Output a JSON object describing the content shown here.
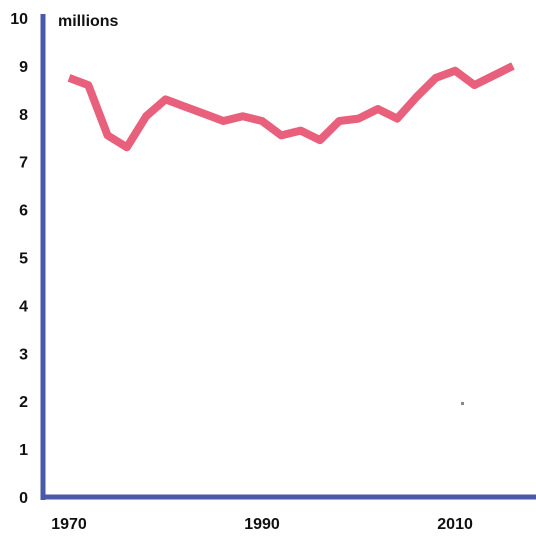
{
  "chart_data": {
    "type": "line",
    "ylabel": "millions",
    "x": [
      1970,
      1972,
      1974,
      1976,
      1978,
      1980,
      1982,
      1984,
      1986,
      1988,
      1990,
      1992,
      1994,
      1996,
      1998,
      2000,
      2002,
      2004,
      2006,
      2008,
      2010,
      2012,
      2014,
      2016
    ],
    "series": [
      {
        "color": "#e8607c",
        "values": [
          8.75,
          8.6,
          7.55,
          7.3,
          7.95,
          8.3,
          8.15,
          8.0,
          7.85,
          7.95,
          7.85,
          7.55,
          7.65,
          7.45,
          7.85,
          7.9,
          8.1,
          7.9,
          8.35,
          8.75,
          8.9,
          8.6,
          8.8,
          9.0
        ]
      }
    ],
    "xlim": [
      1970,
      2016
    ],
    "ylim": [
      0,
      10
    ],
    "x_ticks": [
      1970,
      1990,
      2010
    ],
    "y_ticks": [
      0,
      1,
      2,
      3,
      4,
      5,
      6,
      7,
      8,
      9,
      10
    ],
    "grid": false,
    "axis_color": "#4a5aa8"
  }
}
